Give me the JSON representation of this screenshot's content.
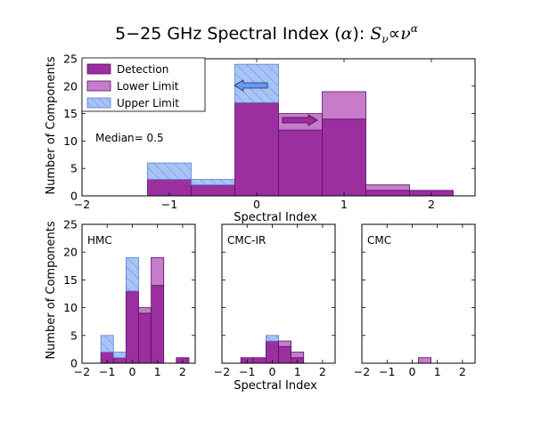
{
  "figure": {
    "title_prefix": "5−25 GHz Spectral Index (",
    "title_alpha": "α",
    "title_suffix": "): ",
    "title_S": "S",
    "title_nu_sub": "ν",
    "title_propto": "∝",
    "title_nu": "ν",
    "title_alpha_sup": "α"
  },
  "colors": {
    "detection": "#9b2fa0",
    "detection_edge": "#5a1060",
    "lower_limit": "#c77ccb",
    "upper_limit": "#a8c4f5",
    "upper_limit_hatch": "#5c7fd1",
    "arrow_blue": "#6699ee",
    "arrow_purple": "#9b2fa0"
  },
  "chart_data": [
    {
      "id": "main",
      "type": "bar",
      "stacked": true,
      "bin_edges": [
        -2.25,
        -1.75,
        -1.25,
        -0.75,
        -0.25,
        0.25,
        0.75,
        1.25,
        1.75,
        2.25
      ],
      "series": [
        {
          "name": "Detection",
          "values": [
            0,
            0,
            3,
            2,
            17,
            12,
            14,
            1,
            1
          ]
        },
        {
          "name": "Lower Limit",
          "values": [
            0,
            0,
            0,
            0,
            0,
            3,
            5,
            1,
            0
          ]
        },
        {
          "name": "Upper Limit",
          "values": [
            0,
            0,
            3,
            1,
            7,
            0,
            0,
            0,
            0
          ]
        }
      ],
      "xlim": [
        -2,
        2.5
      ],
      "ylim": [
        0,
        25
      ],
      "xticks": [
        "−2",
        "−1",
        "0",
        "1",
        "2"
      ],
      "xtick_values": [
        -2,
        -1,
        0,
        1,
        2
      ],
      "yticks": [
        "0",
        "5",
        "10",
        "15",
        "20",
        "25"
      ],
      "ytick_values": [
        0,
        5,
        10,
        15,
        20,
        25
      ],
      "xlabel": "Spectral Index",
      "ylabel": "Number of Components",
      "annotation": "Median= 0.5",
      "legend": {
        "placement": "top-left",
        "entries": [
          "Detection",
          "Lower Limit",
          "Upper Limit"
        ]
      }
    },
    {
      "id": "hmc",
      "type": "bar",
      "stacked": true,
      "label": "HMC",
      "bin_edges": [
        -2.25,
        -1.75,
        -1.25,
        -0.75,
        -0.25,
        0.25,
        0.75,
        1.25,
        1.75,
        2.25
      ],
      "series": [
        {
          "name": "Detection",
          "values": [
            0,
            0,
            2,
            1,
            13,
            9,
            14,
            0,
            1
          ]
        },
        {
          "name": "Lower Limit",
          "values": [
            0,
            0,
            0,
            0,
            0,
            1,
            5,
            0,
            0
          ]
        },
        {
          "name": "Upper Limit",
          "values": [
            0,
            0,
            3,
            1,
            6,
            0,
            0,
            0,
            0
          ]
        }
      ],
      "xlim": [
        -2,
        2.5
      ],
      "ylim": [
        0,
        25
      ],
      "xticks": [
        "−2",
        "−1",
        "0",
        "1",
        "2"
      ],
      "xtick_values": [
        -2,
        -1,
        0,
        1,
        2
      ],
      "yticks": [
        "0",
        "5",
        "10",
        "15",
        "20",
        "25"
      ],
      "ytick_values": [
        0,
        5,
        10,
        15,
        20,
        25
      ],
      "ylabel": "Number of Components"
    },
    {
      "id": "cmcir",
      "type": "bar",
      "stacked": true,
      "label": "CMC-IR",
      "bin_edges": [
        -2.25,
        -1.75,
        -1.25,
        -0.75,
        -0.25,
        0.25,
        0.75,
        1.25,
        1.75,
        2.25
      ],
      "series": [
        {
          "name": "Detection",
          "values": [
            0,
            0,
            1,
            1,
            4,
            3,
            1,
            0,
            0
          ]
        },
        {
          "name": "Lower Limit",
          "values": [
            0,
            0,
            0,
            0,
            0,
            1,
            1,
            0,
            0
          ]
        },
        {
          "name": "Upper Limit",
          "values": [
            0,
            0,
            0,
            0,
            1,
            0,
            0,
            0,
            0
          ]
        }
      ],
      "xlim": [
        -2,
        2.5
      ],
      "ylim": [
        0,
        25
      ],
      "xticks": [
        "−2",
        "−1",
        "0",
        "1",
        "2"
      ],
      "xtick_values": [
        -2,
        -1,
        0,
        1,
        2
      ],
      "yticks": [
        "0",
        "5",
        "10",
        "15",
        "20",
        "25"
      ],
      "ytick_values": [
        0,
        5,
        10,
        15,
        20,
        25
      ],
      "xlabel": "Spectral Index"
    },
    {
      "id": "cmc",
      "type": "bar",
      "stacked": true,
      "label": "CMC",
      "bin_edges": [
        -2.25,
        -1.75,
        -1.25,
        -0.75,
        -0.25,
        0.25,
        0.75,
        1.25,
        1.75,
        2.25
      ],
      "series": [
        {
          "name": "Detection",
          "values": [
            0,
            0,
            0,
            0,
            0,
            0,
            0,
            0,
            0
          ]
        },
        {
          "name": "Lower Limit",
          "values": [
            0,
            0,
            0,
            0,
            0,
            1,
            0,
            0,
            0
          ]
        },
        {
          "name": "Upper Limit",
          "values": [
            0,
            0,
            0,
            0,
            0,
            0,
            0,
            0,
            0
          ]
        }
      ],
      "xlim": [
        -2,
        2.5
      ],
      "ylim": [
        0,
        25
      ],
      "xticks": [
        "−2",
        "−1",
        "0",
        "1",
        "2"
      ],
      "xtick_values": [
        -2,
        -1,
        0,
        1,
        2
      ],
      "yticks": [
        "0",
        "5",
        "10",
        "15",
        "20",
        "25"
      ],
      "ytick_values": [
        0,
        5,
        10,
        15,
        20,
        25
      ]
    }
  ]
}
